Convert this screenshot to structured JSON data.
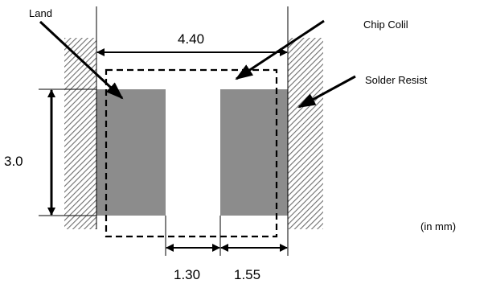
{
  "labels": {
    "land": "Land",
    "chip_coil": "Chip Colil",
    "solder_resist": "Solder Resist",
    "units": "(in mm)"
  },
  "dimensions": {
    "overall_width": "4.40",
    "land_height": "3.0",
    "gap_width": "1.30",
    "land_width": "1.55"
  },
  "colors": {
    "land_fill": "#8c8c8c",
    "hatch": "#6e6e6e",
    "line": "#000000"
  }
}
